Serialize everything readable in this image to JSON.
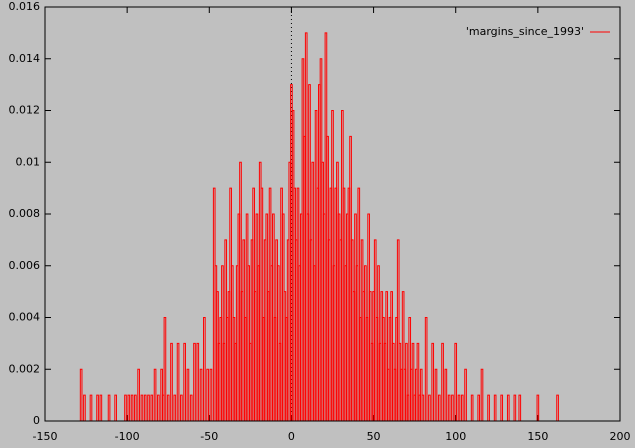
{
  "chart_data": {
    "type": "bar",
    "legend": "top right",
    "xlim": [
      -150,
      200
    ],
    "ylim": [
      0,
      0.016
    ],
    "xticks": [
      -150,
      -100,
      -50,
      0,
      50,
      100,
      150,
      200
    ],
    "yticks": [
      0,
      0.002,
      0.004,
      0.006,
      0.008,
      0.01,
      0.012,
      0.014,
      0.016
    ],
    "series": [
      {
        "name": "'margins_since_1993'",
        "color": "#ff0000",
        "x": [
          -128,
          -126,
          -122,
          -118,
          -116,
          -111,
          -107,
          -101,
          -99,
          -97,
          -95,
          -93,
          -91,
          -89,
          -87,
          -85,
          -83,
          -81,
          -79,
          -78,
          -77,
          -75,
          -73,
          -71,
          -69,
          -67,
          -65,
          -63,
          -61,
          -59,
          -57,
          -55,
          -53,
          -51,
          -49,
          -47,
          -46,
          -45,
          -44,
          -43,
          -42,
          -41,
          -40,
          -39,
          -38,
          -37,
          -36,
          -35,
          -34,
          -33,
          -32,
          -31,
          -30,
          -29,
          -28,
          -27,
          -26,
          -25,
          -24,
          -23,
          -22,
          -21,
          -20,
          -19,
          -18,
          -17,
          -16,
          -15,
          -14,
          -13,
          -12,
          -11,
          -10,
          -9,
          -8,
          -7,
          -6,
          -5,
          -4,
          -3,
          -2,
          -1,
          0,
          1,
          2,
          3,
          4,
          5,
          6,
          7,
          8,
          9,
          10,
          11,
          12,
          13,
          14,
          15,
          16,
          17,
          18,
          19,
          20,
          21,
          22,
          23,
          24,
          25,
          26,
          27,
          28,
          29,
          30,
          31,
          32,
          33,
          34,
          35,
          36,
          37,
          38,
          39,
          40,
          41,
          42,
          43,
          44,
          45,
          46,
          47,
          48,
          49,
          50,
          51,
          52,
          53,
          54,
          55,
          56,
          57,
          58,
          59,
          60,
          61,
          62,
          63,
          64,
          65,
          66,
          67,
          68,
          69,
          70,
          71,
          72,
          73,
          74,
          75,
          76,
          77,
          78,
          79,
          80,
          82,
          84,
          86,
          88,
          90,
          92,
          94,
          96,
          98,
          100,
          102,
          104,
          106,
          110,
          114,
          116,
          120,
          124,
          128,
          132,
          136,
          139,
          150,
          162
        ],
        "values": [
          0.002,
          0.001,
          0.001,
          0.001,
          0.001,
          0.001,
          0.001,
          0.001,
          0.001,
          0.001,
          0.001,
          0.002,
          0.001,
          0.001,
          0.001,
          0.001,
          0.002,
          0.001,
          0.002,
          0.001,
          0.004,
          0.001,
          0.003,
          0.001,
          0.003,
          0.001,
          0.003,
          0.002,
          0.001,
          0.003,
          0.003,
          0.002,
          0.004,
          0.002,
          0.002,
          0.009,
          0.006,
          0.005,
          0.003,
          0.004,
          0.006,
          0.003,
          0.007,
          0.004,
          0.005,
          0.009,
          0.006,
          0.004,
          0.003,
          0.006,
          0.008,
          0.01,
          0.005,
          0.007,
          0.004,
          0.008,
          0.006,
          0.003,
          0.007,
          0.009,
          0.005,
          0.008,
          0.006,
          0.01,
          0.009,
          0.004,
          0.007,
          0.008,
          0.005,
          0.009,
          0.006,
          0.008,
          0.004,
          0.007,
          0.006,
          0.003,
          0.009,
          0.008,
          0.005,
          0.004,
          0.007,
          0.01,
          0.013,
          0.012,
          0.009,
          0.007,
          0.009,
          0.006,
          0.008,
          0.014,
          0.011,
          0.015,
          0.008,
          0.013,
          0.007,
          0.01,
          0.006,
          0.012,
          0.009,
          0.013,
          0.014,
          0.01,
          0.008,
          0.015,
          0.011,
          0.007,
          0.009,
          0.012,
          0.006,
          0.009,
          0.01,
          0.008,
          0.007,
          0.012,
          0.009,
          0.006,
          0.008,
          0.009,
          0.011,
          0.007,
          0.005,
          0.008,
          0.006,
          0.009,
          0.004,
          0.007,
          0.005,
          0.006,
          0.004,
          0.008,
          0.005,
          0.003,
          0.005,
          0.007,
          0.004,
          0.006,
          0.003,
          0.005,
          0.004,
          0.003,
          0.005,
          0.002,
          0.004,
          0.005,
          0.003,
          0.002,
          0.004,
          0.007,
          0.003,
          0.002,
          0.005,
          0.002,
          0.003,
          0.001,
          0.004,
          0.002,
          0.003,
          0.001,
          0.002,
          0.003,
          0.001,
          0.002,
          0.001,
          0.004,
          0.001,
          0.003,
          0.002,
          0.001,
          0.003,
          0.002,
          0.001,
          0.001,
          0.003,
          0.001,
          0.001,
          0.002,
          0.001,
          0.001,
          0.002,
          0.001,
          0.001,
          0.001,
          0.001,
          0.001,
          0.001,
          0.001,
          0.001
        ]
      }
    ]
  }
}
